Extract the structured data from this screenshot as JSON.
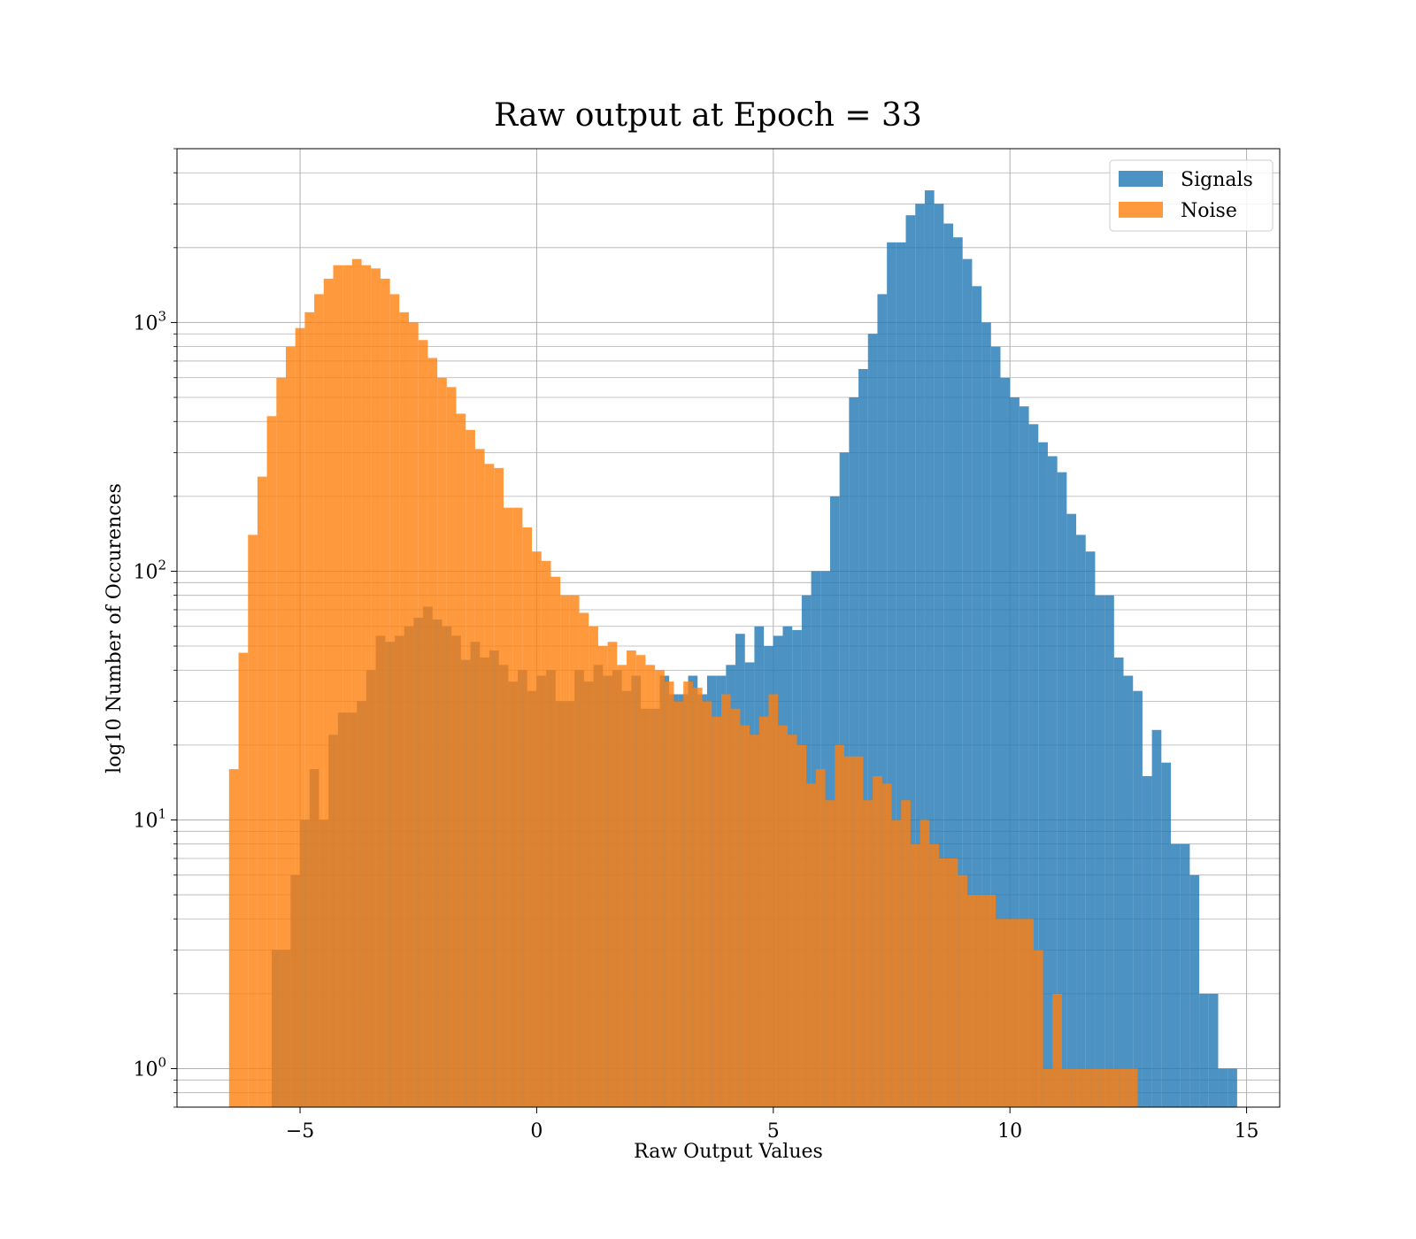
{
  "chart_data": {
    "type": "bar",
    "title": "Raw output at Epoch = 33",
    "xlabel": "Raw Output Values",
    "ylabel": "log10 Number of Occurences",
    "xlim": [
      -7.6,
      15.7
    ],
    "ylim": [
      0.7,
      5000
    ],
    "yscale": "log",
    "grid": true,
    "legend_position": "top-right",
    "bin_width": 0.2,
    "x_ticks": [
      {
        "value": -5,
        "label": "−5"
      },
      {
        "value": 0,
        "label": "0"
      },
      {
        "value": 5,
        "label": "5"
      },
      {
        "value": 10,
        "label": "10"
      },
      {
        "value": 15,
        "label": "15"
      }
    ],
    "y_ticks": [
      {
        "value": 1,
        "base": "10",
        "exp": "0"
      },
      {
        "value": 10,
        "base": "10",
        "exp": "1"
      },
      {
        "value": 100,
        "base": "10",
        "exp": "2"
      },
      {
        "value": 1000,
        "base": "10",
        "exp": "3"
      }
    ],
    "series": [
      {
        "name": "Signals",
        "color": "#1f77b4",
        "opacity": 0.8,
        "x_start": -5.6,
        "values": [
          3,
          3,
          6,
          10,
          16,
          10,
          22,
          27,
          27,
          30,
          40,
          55,
          52,
          55,
          60,
          65,
          72,
          64,
          60,
          55,
          44,
          52,
          45,
          48,
          42,
          36,
          40,
          33,
          38,
          40,
          30,
          30,
          40,
          36,
          42,
          38,
          40,
          33,
          38,
          28,
          28,
          38,
          32,
          32,
          38,
          32,
          38,
          38,
          42,
          56,
          43,
          60,
          50,
          55,
          60,
          58,
          80,
          100,
          100,
          200,
          300,
          500,
          650,
          900,
          1300,
          2100,
          2100,
          2700,
          3000,
          3400,
          3000,
          2500,
          2200,
          1800,
          1400,
          1000,
          800,
          600,
          500,
          460,
          390,
          330,
          290,
          250,
          170,
          140,
          120,
          80,
          80,
          45,
          38,
          33,
          15,
          23,
          17,
          8,
          8,
          6,
          2,
          2,
          1,
          1
        ]
      },
      {
        "name": "Noise",
        "color": "#ff7f0e",
        "opacity": 0.8,
        "x_start": -6.5,
        "values": [
          16,
          47,
          140,
          240,
          420,
          600,
          800,
          950,
          1100,
          1300,
          1500,
          1700,
          1700,
          1800,
          1700,
          1650,
          1500,
          1300,
          1100,
          1000,
          850,
          720,
          600,
          550,
          430,
          370,
          310,
          270,
          260,
          180,
          180,
          150,
          120,
          110,
          95,
          80,
          80,
          68,
          60,
          50,
          52,
          42,
          48,
          46,
          42,
          40,
          36,
          30,
          36,
          34,
          30,
          26,
          32,
          28,
          24,
          22,
          26,
          32,
          24,
          22,
          20,
          14,
          16,
          12,
          20,
          18,
          18,
          12,
          15,
          14,
          10,
          12,
          8,
          10,
          8,
          7,
          7,
          6,
          5,
          5,
          5,
          4,
          4,
          4,
          4,
          3,
          1,
          2,
          1,
          1,
          1,
          1,
          1,
          1,
          1,
          1
        ]
      }
    ]
  }
}
